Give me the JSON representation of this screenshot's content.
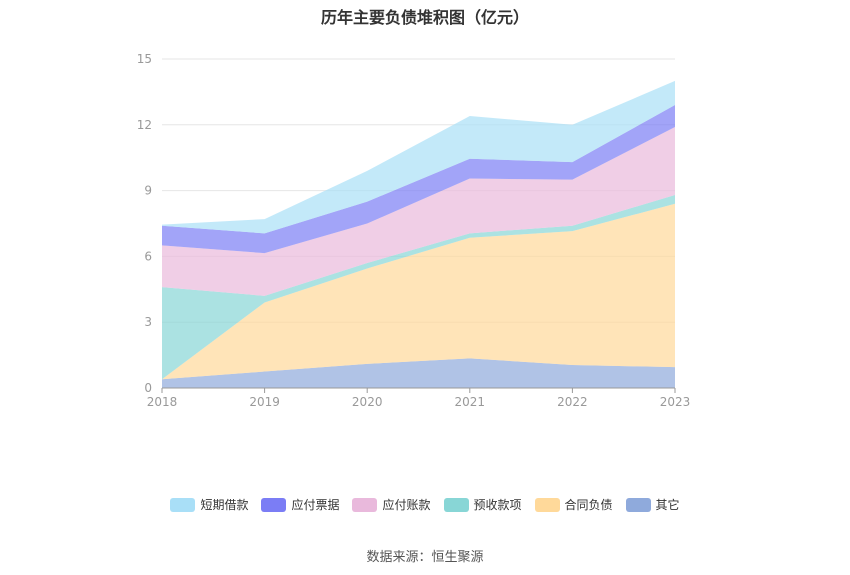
{
  "chart_data": {
    "type": "area",
    "stacked": true,
    "title": "历年主要负债堆积图（亿元）",
    "categories": [
      "2018",
      "2019",
      "2020",
      "2021",
      "2022",
      "2023"
    ],
    "y_ticks": [
      "0",
      "3",
      "6",
      "9",
      "12",
      "15"
    ],
    "ylim": [
      0,
      15
    ],
    "legend_position": "bottom",
    "grid": true,
    "series": [
      {
        "name": "其它",
        "color": "#8faadc",
        "values": [
          0.4,
          0.75,
          1.1,
          1.35,
          1.05,
          0.95
        ]
      },
      {
        "name": "合同负债",
        "color": "#ffd99a",
        "values": [
          0.0,
          3.15,
          4.35,
          5.5,
          6.1,
          7.45
        ]
      },
      {
        "name": "预收款项",
        "color": "#88d6d6",
        "values": [
          4.2,
          0.3,
          0.25,
          0.2,
          0.25,
          0.4
        ]
      },
      {
        "name": "应付账款",
        "color": "#e9b9dc",
        "values": [
          1.9,
          1.95,
          1.8,
          2.5,
          2.1,
          3.1
        ]
      },
      {
        "name": "应付票据",
        "color": "#7b7df5",
        "values": [
          0.9,
          0.9,
          1.0,
          0.9,
          0.8,
          1.0
        ]
      },
      {
        "name": "短期借款",
        "color": "#a9dff7",
        "values": [
          0.05,
          0.65,
          1.4,
          1.95,
          1.7,
          1.1
        ]
      }
    ],
    "legend_order": [
      "短期借款",
      "应付票据",
      "应付账款",
      "预收款项",
      "合同负债",
      "其它"
    ]
  },
  "source_text": "数据来源：恒生聚源"
}
